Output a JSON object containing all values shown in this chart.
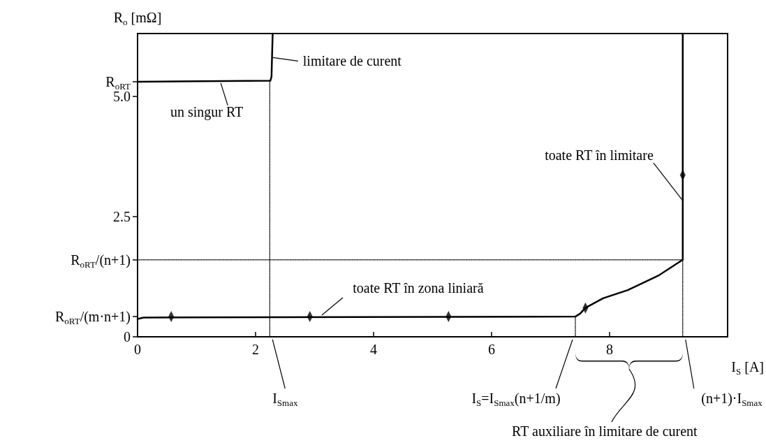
{
  "chart_data": {
    "type": "line",
    "xlabel": "I$_{S}$ [A]",
    "ylabel": "R$_{o}$ [mΩ]",
    "xlim": [
      0,
      10
    ],
    "xticks": [
      0,
      2,
      4,
      6,
      8,
      {
        "value": 10,
        "label": null
      }
    ],
    "ylim": [
      0,
      6.3
    ],
    "yticks": [
      0,
      {
        "value": 0.42,
        "label": "R$_{oRT}$/(m·n+1)"
      },
      {
        "value": 1.6,
        "label": "R$_{oRT}$/(n+1)"
      },
      2.5,
      {
        "value": 5,
        "label": "5.0"
      },
      {
        "value": 5.3,
        "label": "R$_{oRT}$"
      }
    ],
    "grid": false,
    "marker": "none",
    "line_style": "solid",
    "series": [
      {
        "color": "#000000",
        "x": [
          0,
          2.25,
          2.27,
          2.29
        ],
        "values": [
          5.3,
          5.32,
          5.4,
          6.3
        ]
      },
      {
        "color": "#000000",
        "x": [
          0,
          0.1,
          7.42,
          7.5,
          7.59,
          7.89,
          8.31,
          8.84,
          9.24,
          9.24
        ],
        "values": [
          0.37,
          0.4,
          0.42,
          0.48,
          0.6,
          0.8,
          0.97,
          1.28,
          1.6,
          6.3
        ]
      },
      {
        "type": "scatter",
        "marker": "diamond",
        "color": "#000000",
        "x": [
          0.57,
          2.92,
          5.27,
          7.59,
          9.24
        ],
        "values": [
          0.42,
          0.42,
          0.42,
          0.6,
          3.36
        ]
      },
      {
        "line_style": "dotted",
        "color": "#000000",
        "x": [
          0,
          9.24,
          9.24
        ],
        "values": [
          1.6,
          1.6,
          0
        ]
      },
      {
        "line_style": "dotted",
        "color": "#000000",
        "x": [
          2.24,
          2.24
        ],
        "values": [
          5.3,
          0
        ]
      },
      {
        "line_style": "dotted",
        "color": "#000000",
        "x": [
          7.42,
          7.42
        ],
        "values": [
          0.42,
          0
        ]
      }
    ],
    "annotations": [
      {
        "text": "limitare de curent",
        "x": 2.27,
        "y": 5.8
      },
      {
        "text": "un singur RT",
        "x": 1.41,
        "y": 5.3
      },
      {
        "text": "toate RT în limitare",
        "x": 9.24,
        "y": 2.83
      },
      {
        "text": "toate RT în zona liniară",
        "x": 3.1,
        "y": 0.42
      },
      {
        "text": "I$_{Smax}$",
        "x": 2.24,
        "y": 0
      },
      {
        "text": "I$_{S}$=I$_{Smax}$(n+1/m)",
        "x": 7.42,
        "y": 0
      },
      {
        "text": "(n+1)·I$_{Smax}$",
        "x": 9.24,
        "y": 0
      },
      "RT auxiliare în limitare de curent"
    ]
  }
}
